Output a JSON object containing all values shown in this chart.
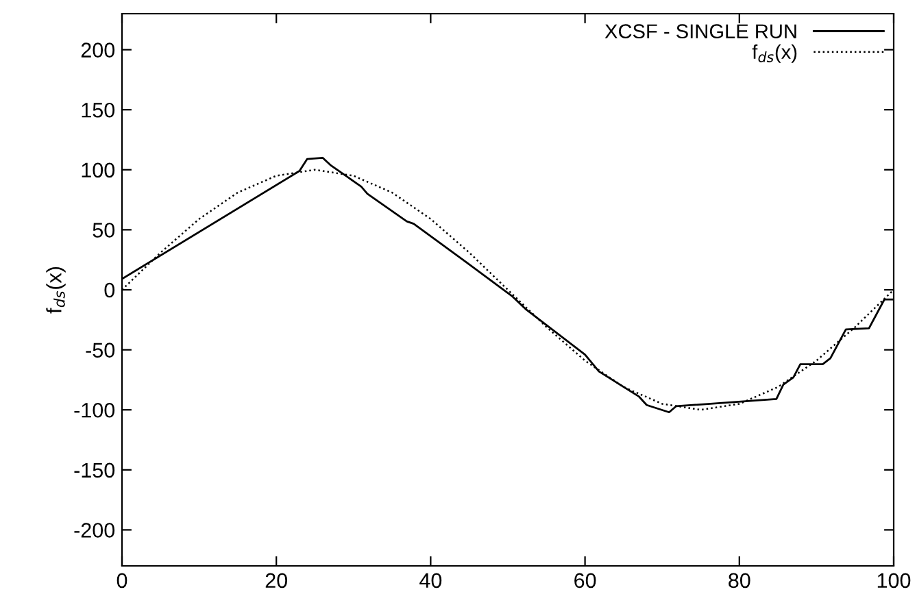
{
  "chart_data": {
    "type": "line",
    "ylabel": "f$_{ds}$(x)",
    "xlim": [
      0,
      100
    ],
    "ylim": [
      -230,
      230
    ],
    "xticks": [
      0,
      20,
      40,
      60,
      80,
      100
    ],
    "yticks": [
      -200,
      -150,
      -100,
      -50,
      0,
      50,
      100,
      150,
      200
    ],
    "grid": false,
    "legend": "top right",
    "marker": "none",
    "series": [
      {
        "name": "XCSF - SINGLE RUN",
        "color": "#000000",
        "line_style": "solid",
        "x": [
          0,
          23,
          24,
          26,
          27,
          31,
          31.8,
          36.9,
          37.8,
          44.6,
          50.5,
          52.3,
          60,
          61.8,
          67,
          68,
          70.9,
          71.8,
          84.8,
          85.7,
          87,
          87.9,
          90.8,
          91.8,
          93.8,
          96.8,
          98.8,
          100
        ],
        "values": [
          9,
          99,
          109,
          110,
          104,
          86,
          80,
          57,
          55,
          23,
          -5,
          -16,
          -54,
          -68,
          -89,
          -96,
          -102,
          -97,
          -91,
          -79,
          -73,
          -62,
          -62,
          -57,
          -33,
          -32,
          -8,
          -8
        ]
      },
      {
        "name": "f$_{ds}$(x)",
        "color": "#000000",
        "line_style": "dotted",
        "x": [
          0,
          5,
          10,
          15,
          20,
          25,
          30,
          35,
          40,
          45,
          50,
          55,
          60,
          65,
          70,
          75,
          80,
          85,
          90,
          95,
          100
        ],
        "values": [
          0,
          31,
          59,
          81,
          95,
          100,
          95,
          81,
          59,
          31,
          0,
          -31,
          -59,
          -81,
          -95,
          -100,
          -95,
          -81,
          -59,
          -31,
          0
        ]
      }
    ]
  }
}
